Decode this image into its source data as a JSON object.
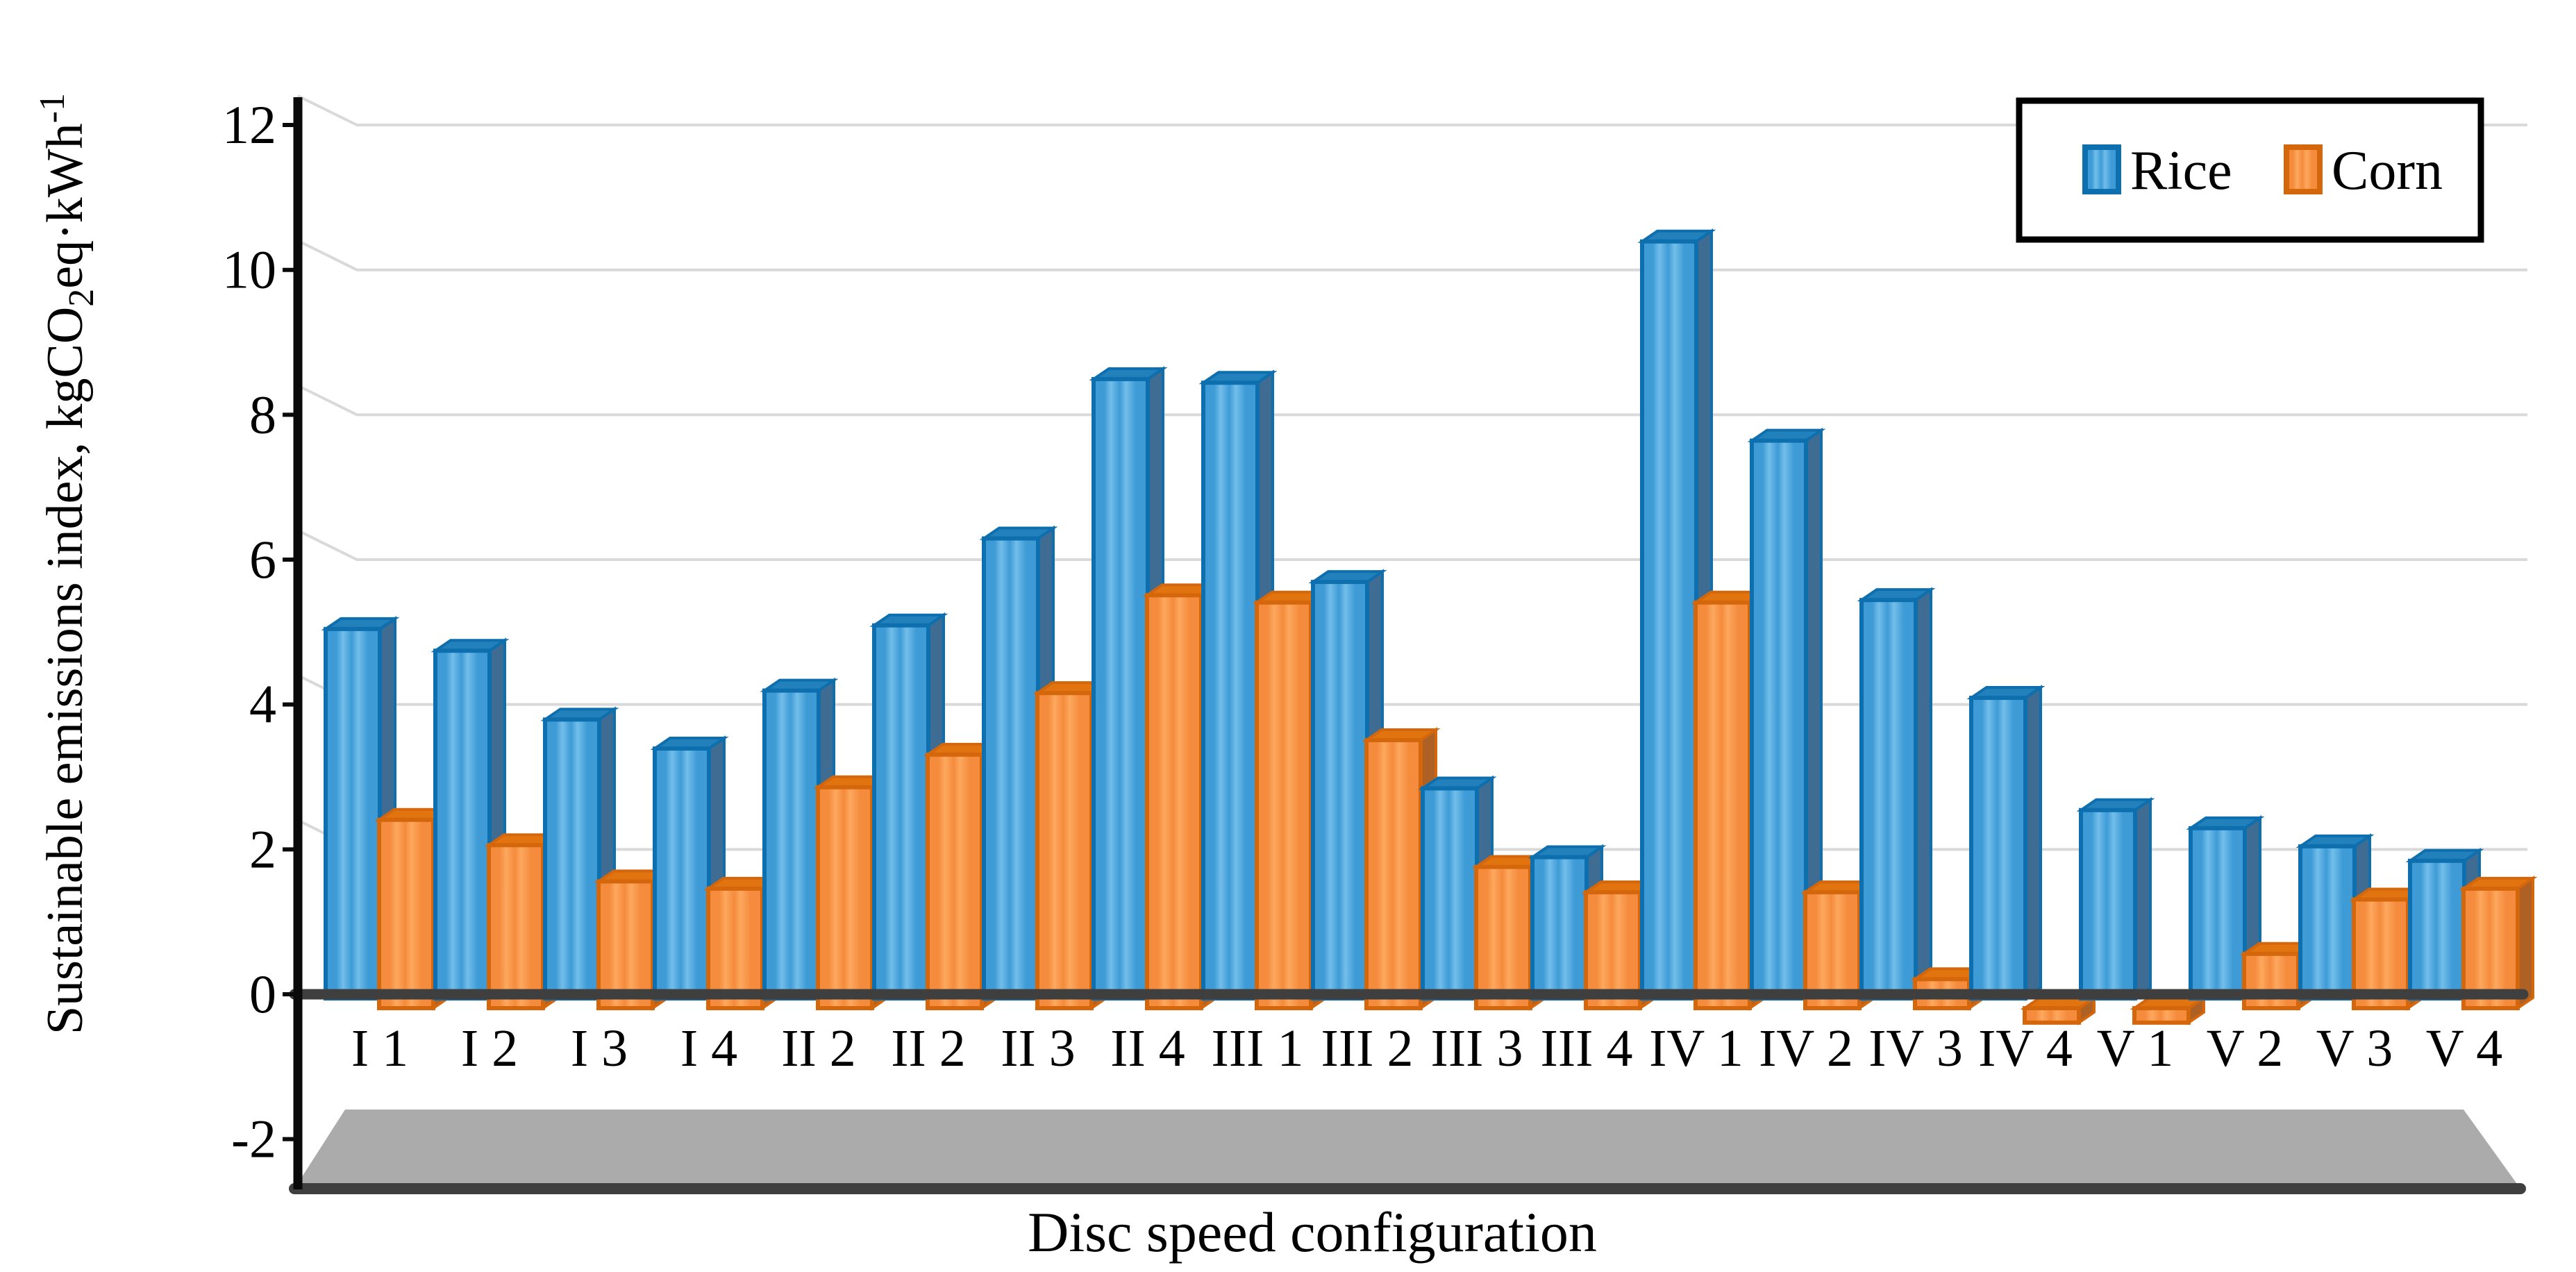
{
  "chart_data": {
    "type": "bar",
    "title": "",
    "xlabel": "Disc speed configuration",
    "ylabel": "Sustainable emissions index, kgCO2eq·kWh-1",
    "ylabel_parts": {
      "p1": "Sustainable emissions index, kgCO",
      "sub": "2",
      "p2": "eq·kWh",
      "sup": "-1"
    },
    "ylim": [
      -2,
      12
    ],
    "yticks": [
      12,
      10,
      8,
      6,
      4,
      2,
      0,
      -2
    ],
    "grid": "horizontal-light",
    "legend_position": "top-right",
    "categories": [
      "I 1",
      "I 2",
      "I 3",
      "I 4",
      "II 2",
      "II 2",
      "II 3",
      "II 4",
      "III 1",
      "III 2",
      "III 3",
      "III 4",
      "IV 1",
      "IV 2",
      "IV 3",
      "IV 4",
      "V 1",
      "V 2",
      "V 3",
      "V 4"
    ],
    "series": [
      {
        "name": "Rice",
        "color": "#3E9BD6",
        "color_light": "#72BEEA",
        "color_side": "#3E6C93",
        "color_top": "#2280BA",
        "color_border": "#0E6FAF",
        "values": [
          5.1,
          4.8,
          3.85,
          3.45,
          4.25,
          5.15,
          6.35,
          8.55,
          8.5,
          5.75,
          2.9,
          1.95,
          10.45,
          7.7,
          5.5,
          4.15,
          2.6,
          2.35,
          2.1,
          1.9
        ]
      },
      {
        "name": "Corn",
        "color": "#F58B3C",
        "color_light": "#FCA85F",
        "color_side": "#AE6125",
        "color_top": "#E2740F",
        "color_border": "#D4660B",
        "values": [
          2.6,
          2.25,
          1.75,
          1.65,
          3.05,
          3.5,
          4.35,
          5.7,
          5.6,
          3.7,
          1.95,
          1.6,
          5.6,
          1.6,
          0.4,
          -0.2,
          -0.2,
          0.75,
          1.5,
          1.65
        ]
      }
    ],
    "colors": {
      "gridline": "#D9D9D9",
      "axis_dark": "#3F3F3F",
      "axis_black": "#0A0A0A",
      "floor": "#ABABAB",
      "legend_border": "#000000",
      "background": "#FFFFFF"
    }
  }
}
